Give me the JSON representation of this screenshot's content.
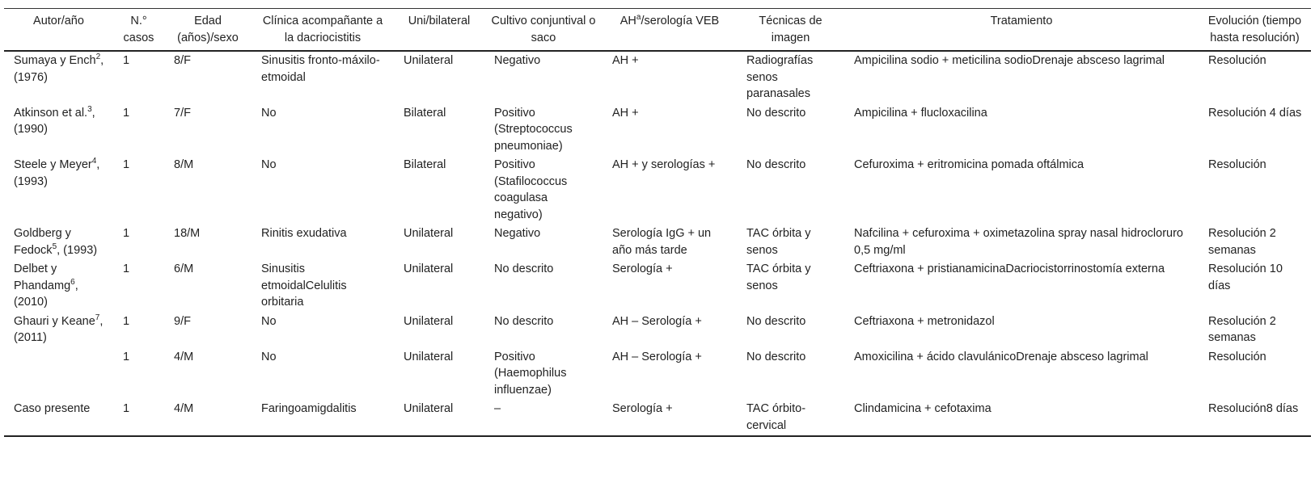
{
  "table": {
    "columns": [
      "Autor/año",
      "N.° casos",
      "Edad (años)/sexo",
      "Clínica acompañante a la dacriocistitis",
      "Uni/bilateral",
      "Cultivo conjuntival o saco",
      [
        "AH",
        {
          "sup": "a"
        },
        "/serología VEB"
      ],
      "Técnicas de imagen",
      "Tratamiento",
      "Evolución (tiempo hasta resolución)"
    ],
    "rows": [
      [
        [
          "Sumaya y Ench",
          {
            "sup": "2"
          },
          ", (1976)"
        ],
        "1",
        "8/F",
        "Sinusitis fronto-máxilo-etmoidal",
        "Unilateral",
        "Negativo",
        "AH +",
        "Radiografías senos paranasales",
        "Ampicilina sodio + meticilina sodioDrenaje absceso lagrimal",
        "Resolución"
      ],
      [
        [
          "Atkinson et al.",
          {
            "sup": "3"
          },
          ", (1990)"
        ],
        "1",
        "7/F",
        "No",
        "Bilateral",
        "Positivo (Streptococcus pneumoniae)",
        "AH +",
        "No descrito",
        "Ampicilina + flucloxacilina",
        "Resolución 4 días"
      ],
      [
        [
          "Steele y Meyer",
          {
            "sup": "4"
          },
          ", (1993)"
        ],
        "1",
        "8/M",
        "No",
        "Bilateral",
        "Positivo (Stafilococcus coagulasa negativo)",
        "AH + y serologías +",
        "No descrito",
        "Cefuroxima + eritromicina pomada oftálmica",
        "Resolución"
      ],
      [
        [
          "Goldberg y Fedock",
          {
            "sup": "5"
          },
          ", (1993)"
        ],
        "1",
        "18/M",
        "Rinitis exudativa",
        "Unilateral",
        "Negativo",
        "Serología IgG + un año más tarde",
        "TAC órbita y senos",
        "Nafcilina + cefuroxima + oximetazolina spray nasal hidrocloruro 0,5 mg/ml",
        "Resolución 2 semanas"
      ],
      [
        [
          "Delbet y Phandamg",
          {
            "sup": "6"
          },
          ", (2010)"
        ],
        "1",
        "6/M",
        "Sinusitis etmoidalCelulitis orbitaria",
        "Unilateral",
        "No descrito",
        "Serología +",
        "TAC órbita y senos",
        "Ceftriaxona + pristianamicinaDacriocistorrinostomía externa",
        "Resolución 10 días"
      ],
      [
        [
          "Ghauri y Keane",
          {
            "sup": "7"
          },
          ", (2011)"
        ],
        "1",
        "9/F",
        "No",
        "Unilateral",
        "No descrito",
        "AH – Serología +",
        "No descrito",
        "Ceftriaxona + metronidazol",
        "Resolución 2 semanas"
      ],
      [
        null,
        "1",
        "4/M",
        "No",
        "Unilateral",
        "Positivo (Haemophilus influenzae)",
        "AH – Serología +",
        "No descrito",
        "Amoxicilina + ácido clavulánicoDrenaje absceso lagrimal",
        "Resolución"
      ],
      [
        "Caso presente",
        "1",
        "4/M",
        "Faringoamigdalitis",
        "Unilateral",
        "–",
        "Serología +",
        "TAC órbito-cervical",
        "Clindamicina + cefotaxima",
        "Resolución8 días"
      ]
    ]
  }
}
